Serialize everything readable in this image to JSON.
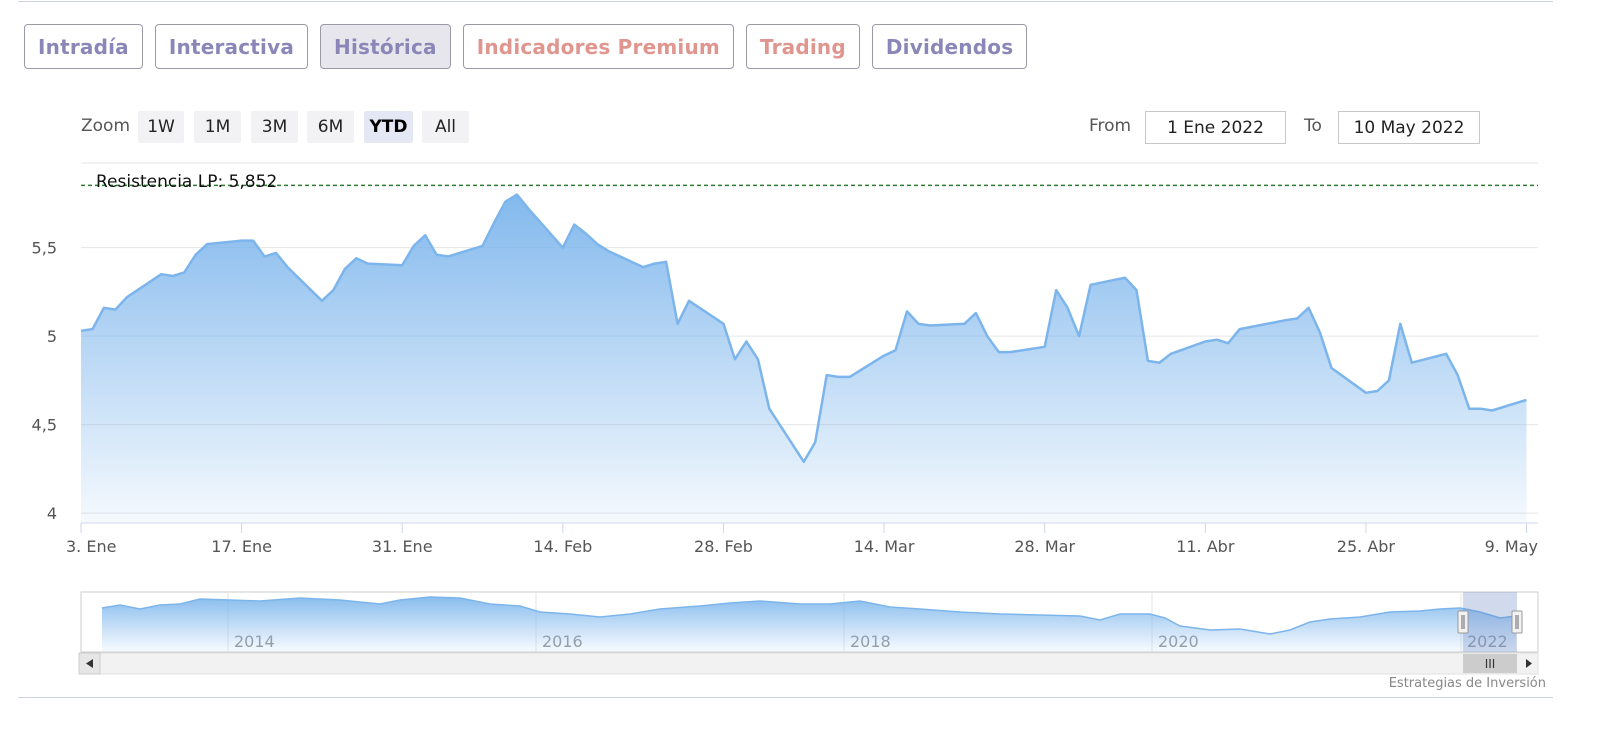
{
  "tabs": [
    {
      "label": "Intradía",
      "color": "#8a87b8",
      "active": false
    },
    {
      "label": "Interactiva",
      "color": "#8a87b8",
      "active": false
    },
    {
      "label": "Histórica",
      "color": "#8a87b8",
      "active": true
    },
    {
      "label": "Indicadores Premium",
      "color": "#e0958f",
      "active": false
    },
    {
      "label": "Trading",
      "color": "#e0958f",
      "active": false
    },
    {
      "label": "Dividendos",
      "color": "#8a87b8",
      "active": false
    }
  ],
  "range_selector": {
    "zoom_label": "Zoom",
    "buttons": [
      {
        "label": "1W",
        "active": false
      },
      {
        "label": "1M",
        "active": false
      },
      {
        "label": "3M",
        "active": false
      },
      {
        "label": "6M",
        "active": false
      },
      {
        "label": "YTD",
        "active": true
      },
      {
        "label": "All",
        "active": false
      }
    ],
    "from_label": "From",
    "from_value": "1 Ene 2022",
    "to_label": "To",
    "to_value": "10 May 2022"
  },
  "chart_data": {
    "type": "area",
    "title": "",
    "xlabel": "",
    "ylabel": "",
    "x_start": "2022-01-03",
    "x_end": "2022-05-10",
    "ylim": [
      3.95,
      5.95
    ],
    "y_ticks": [
      4,
      4.5,
      5,
      5.5
    ],
    "y_tick_labels": [
      "4",
      "4,5",
      "5",
      "5,5"
    ],
    "x_ticks": [
      {
        "date": "2022-01-03",
        "label": "3. Ene"
      },
      {
        "date": "2022-01-17",
        "label": "17. Ene"
      },
      {
        "date": "2022-01-31",
        "label": "31. Ene"
      },
      {
        "date": "2022-02-14",
        "label": "14. Feb"
      },
      {
        "date": "2022-02-28",
        "label": "28. Feb"
      },
      {
        "date": "2022-03-14",
        "label": "14. Mar"
      },
      {
        "date": "2022-03-28",
        "label": "28. Mar"
      },
      {
        "date": "2022-04-11",
        "label": "11. Abr"
      },
      {
        "date": "2022-04-25",
        "label": "25. Abr"
      },
      {
        "date": "2022-05-09",
        "label": "9. May"
      }
    ],
    "series_color": "#7cb5ec",
    "resistance": {
      "label": "Resistencia LP: 5,852",
      "value": 5.852,
      "color": "#2e7d32"
    },
    "series": [
      {
        "name": "",
        "points": [
          [
            "2022-01-03",
            5.03
          ],
          [
            "2022-01-04",
            5.04
          ],
          [
            "2022-01-05",
            5.16
          ],
          [
            "2022-01-06",
            5.15
          ],
          [
            "2022-01-07",
            5.22
          ],
          [
            "2022-01-10",
            5.35
          ],
          [
            "2022-01-11",
            5.34
          ],
          [
            "2022-01-12",
            5.36
          ],
          [
            "2022-01-13",
            5.46
          ],
          [
            "2022-01-14",
            5.52
          ],
          [
            "2022-01-17",
            5.54
          ],
          [
            "2022-01-18",
            5.54
          ],
          [
            "2022-01-19",
            5.45
          ],
          [
            "2022-01-20",
            5.47
          ],
          [
            "2022-01-21",
            5.39
          ],
          [
            "2022-01-24",
            5.2
          ],
          [
            "2022-01-25",
            5.26
          ],
          [
            "2022-01-26",
            5.38
          ],
          [
            "2022-01-27",
            5.44
          ],
          [
            "2022-01-28",
            5.41
          ],
          [
            "2022-01-31",
            5.4
          ],
          [
            "2022-02-01",
            5.51
          ],
          [
            "2022-02-02",
            5.57
          ],
          [
            "2022-02-03",
            5.46
          ],
          [
            "2022-02-04",
            5.45
          ],
          [
            "2022-02-07",
            5.51
          ],
          [
            "2022-02-08",
            5.64
          ],
          [
            "2022-02-09",
            5.76
          ],
          [
            "2022-02-10",
            5.8
          ],
          [
            "2022-02-11",
            5.72
          ],
          [
            "2022-02-14",
            5.5
          ],
          [
            "2022-02-15",
            5.63
          ],
          [
            "2022-02-16",
            5.58
          ],
          [
            "2022-02-17",
            5.52
          ],
          [
            "2022-02-18",
            5.48
          ],
          [
            "2022-02-21",
            5.39
          ],
          [
            "2022-02-22",
            5.41
          ],
          [
            "2022-02-23",
            5.42
          ],
          [
            "2022-02-24",
            5.07
          ],
          [
            "2022-02-25",
            5.2
          ],
          [
            "2022-02-28",
            5.07
          ],
          [
            "2022-03-01",
            4.87
          ],
          [
            "2022-03-02",
            4.97
          ],
          [
            "2022-03-03",
            4.87
          ],
          [
            "2022-03-04",
            4.59
          ],
          [
            "2022-03-07",
            4.29
          ],
          [
            "2022-03-08",
            4.4
          ],
          [
            "2022-03-09",
            4.78
          ],
          [
            "2022-03-10",
            4.77
          ],
          [
            "2022-03-11",
            4.77
          ],
          [
            "2022-03-14",
            4.89
          ],
          [
            "2022-03-15",
            4.92
          ],
          [
            "2022-03-16",
            5.14
          ],
          [
            "2022-03-17",
            5.07
          ],
          [
            "2022-03-18",
            5.06
          ],
          [
            "2022-03-21",
            5.07
          ],
          [
            "2022-03-22",
            5.13
          ],
          [
            "2022-03-23",
            5.0
          ],
          [
            "2022-03-24",
            4.91
          ],
          [
            "2022-03-25",
            4.91
          ],
          [
            "2022-03-28",
            4.94
          ],
          [
            "2022-03-29",
            5.26
          ],
          [
            "2022-03-30",
            5.16
          ],
          [
            "2022-03-31",
            5.0
          ],
          [
            "2022-04-01",
            5.29
          ],
          [
            "2022-04-04",
            5.33
          ],
          [
            "2022-04-05",
            5.26
          ],
          [
            "2022-04-06",
            4.86
          ],
          [
            "2022-04-07",
            4.85
          ],
          [
            "2022-04-08",
            4.9
          ],
          [
            "2022-04-11",
            4.97
          ],
          [
            "2022-04-12",
            4.98
          ],
          [
            "2022-04-13",
            4.96
          ],
          [
            "2022-04-14",
            5.04
          ],
          [
            "2022-04-18",
            5.09
          ],
          [
            "2022-04-19",
            5.1
          ],
          [
            "2022-04-20",
            5.16
          ],
          [
            "2022-04-21",
            5.02
          ],
          [
            "2022-04-22",
            4.82
          ],
          [
            "2022-04-25",
            4.68
          ],
          [
            "2022-04-26",
            4.69
          ],
          [
            "2022-04-27",
            4.75
          ],
          [
            "2022-04-28",
            5.07
          ],
          [
            "2022-04-29",
            4.85
          ],
          [
            "2022-05-02",
            4.9
          ],
          [
            "2022-05-03",
            4.78
          ],
          [
            "2022-05-04",
            4.59
          ],
          [
            "2022-05-05",
            4.59
          ],
          [
            "2022-05-06",
            4.58
          ],
          [
            "2022-05-09",
            4.64
          ]
        ]
      }
    ]
  },
  "navigator": {
    "year_labels": [
      "2014",
      "2016",
      "2018",
      "2020",
      "2022"
    ],
    "scrollbar_grip": "III"
  },
  "credits": "Estrategias de Inversión"
}
